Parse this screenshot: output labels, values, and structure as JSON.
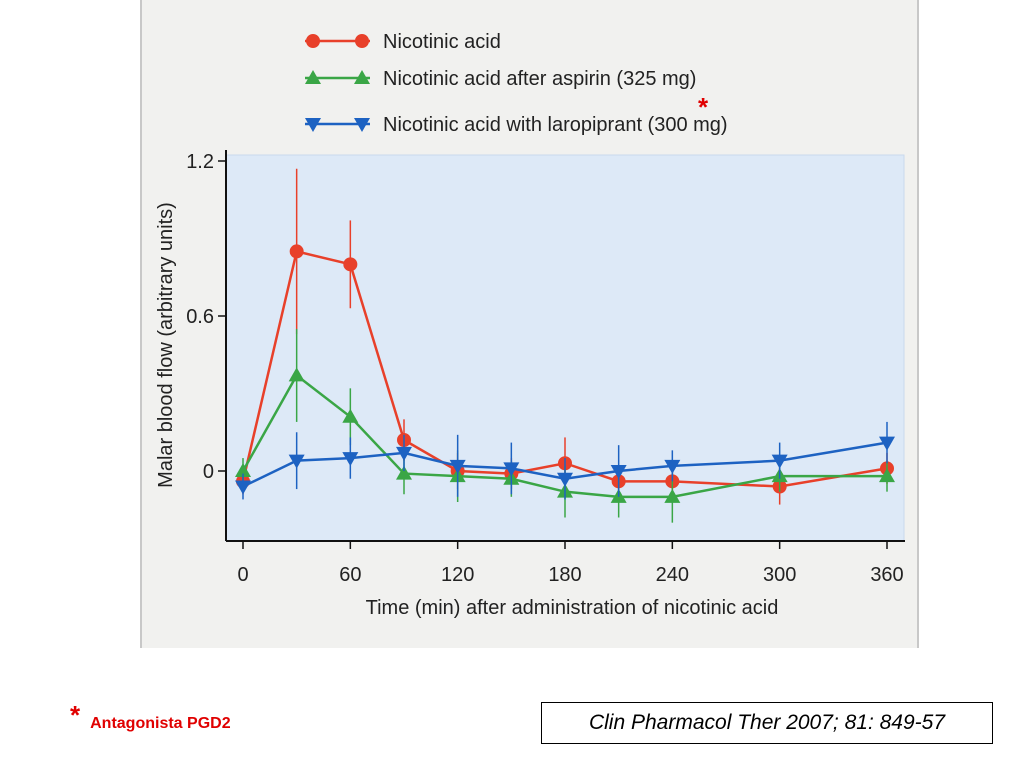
{
  "chart_data": {
    "type": "line",
    "xlabel": "Time (min) after administration of nicotinic acid",
    "ylabel": "Malar blood flow (arbitrary units)",
    "x_ticks": [
      "0",
      "60",
      "120",
      "180",
      "240",
      "300",
      "360"
    ],
    "y_ticks": [
      "0",
      "0.6",
      "1.2"
    ],
    "xlim": [
      0,
      360
    ],
    "ylim": [
      -0.25,
      1.2
    ],
    "grid": false,
    "legend_position": "top",
    "x": [
      0,
      30,
      60,
      90,
      120,
      150,
      180,
      210,
      240,
      300,
      360
    ],
    "series": [
      {
        "name": "Nicotinic acid",
        "color": "#e8402a",
        "marker": "circle",
        "values": [
          -0.04,
          0.85,
          0.8,
          0.12,
          0.0,
          -0.01,
          0.03,
          -0.04,
          -0.04,
          -0.06,
          0.01
        ],
        "err": [
          0.05,
          0.32,
          0.17,
          0.08,
          0.07,
          0.06,
          0.1,
          0.06,
          0.06,
          0.07,
          0.06
        ]
      },
      {
        "name": "Nicotinic acid after aspirin (325 mg)",
        "color": "#3aa646",
        "marker": "triangle-up",
        "values": [
          0.0,
          0.37,
          0.21,
          -0.01,
          -0.02,
          -0.03,
          -0.08,
          -0.1,
          -0.1,
          -0.02,
          -0.02
        ],
        "err": [
          0.05,
          0.18,
          0.11,
          0.08,
          0.1,
          0.07,
          0.1,
          0.08,
          0.1,
          0.06,
          0.06
        ]
      },
      {
        "name": "Nicotinic acid with laropiprant (300 mg)",
        "color": "#1d62c2",
        "marker": "triangle-down",
        "values": [
          -0.06,
          0.04,
          0.05,
          0.07,
          0.02,
          0.01,
          -0.03,
          0.0,
          0.02,
          0.04,
          0.11
        ],
        "err": [
          0.05,
          0.11,
          0.08,
          0.07,
          0.12,
          0.1,
          0.08,
          0.1,
          0.06,
          0.07,
          0.08
        ]
      }
    ],
    "legend_footnote_mark": "*"
  },
  "footnote": {
    "mark": "*",
    "text": "Antagonista PGD2"
  },
  "citation": "Clin Pharmacol Ther 2007; 81: 849-57"
}
